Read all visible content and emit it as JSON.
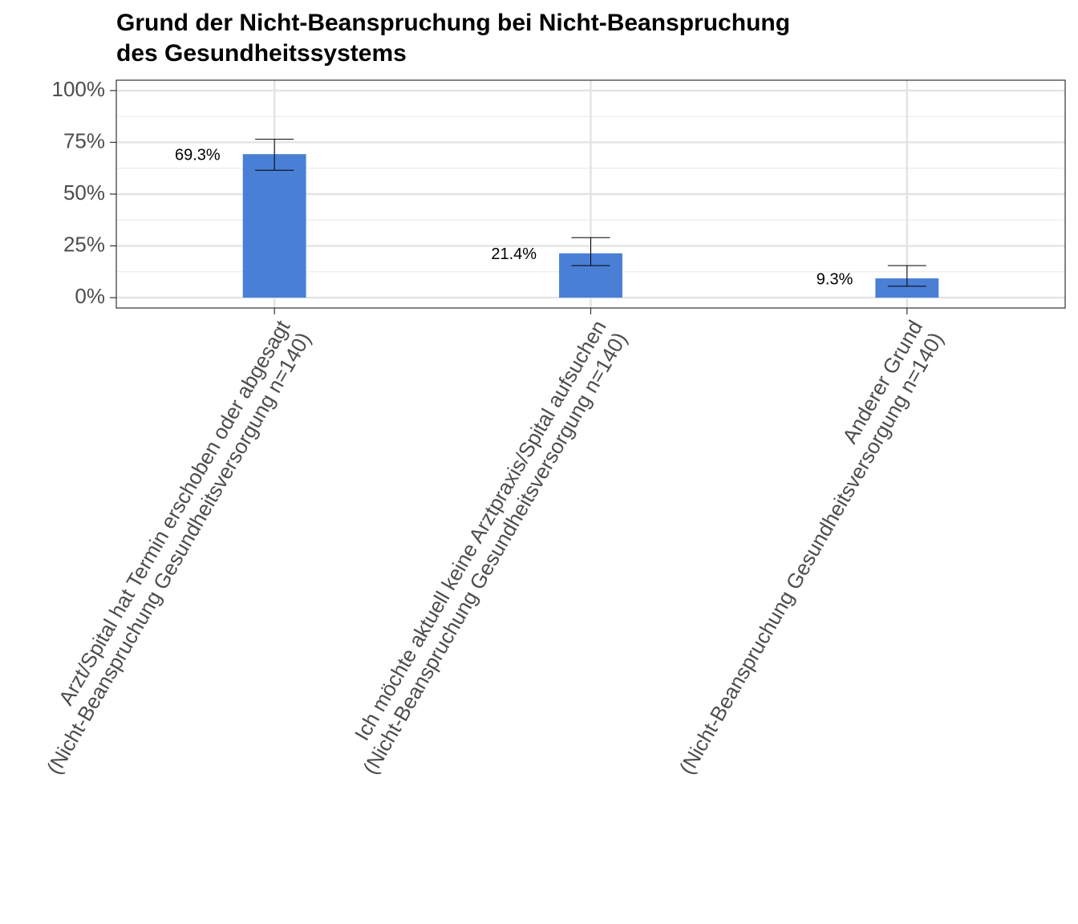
{
  "chart_data": {
    "type": "bar",
    "title_lines": [
      "Grund der Nicht-Beanspruchung bei Nicht-Beanspruchung",
      "des Gesundheitssystems"
    ],
    "categories": [
      [
        "Arzt/Spital hat Termin erschoben oder abgesagt",
        "(Nicht-Beanspruchung Gesundheitsversorgung n=140)"
      ],
      [
        "Ich möchte aktuell keine Arztpraxis/Spital aufsuchen",
        "(Nicht-Beanspruchung Gesundheitsversorgung n=140)"
      ],
      [
        "Anderer Grund",
        "(Nicht-Beanspruchung Gesundheitsversorgung n=140)"
      ]
    ],
    "values": [
      0.693,
      0.214,
      0.093
    ],
    "error_low": [
      0.615,
      0.155,
      0.055
    ],
    "error_high": [
      0.765,
      0.29,
      0.155
    ],
    "data_labels": [
      "69.3%",
      "21.4%",
      "9.3%"
    ],
    "ylim": [
      -0.05,
      1.05
    ],
    "y_ticks": [
      0,
      0.25,
      0.5,
      0.75,
      1.0
    ],
    "y_tick_labels": [
      "0%",
      "25%",
      "50%",
      "75%",
      "100%"
    ],
    "xlabel": "",
    "ylabel": "",
    "grid": true,
    "bar_color": "#4a7fd6"
  }
}
